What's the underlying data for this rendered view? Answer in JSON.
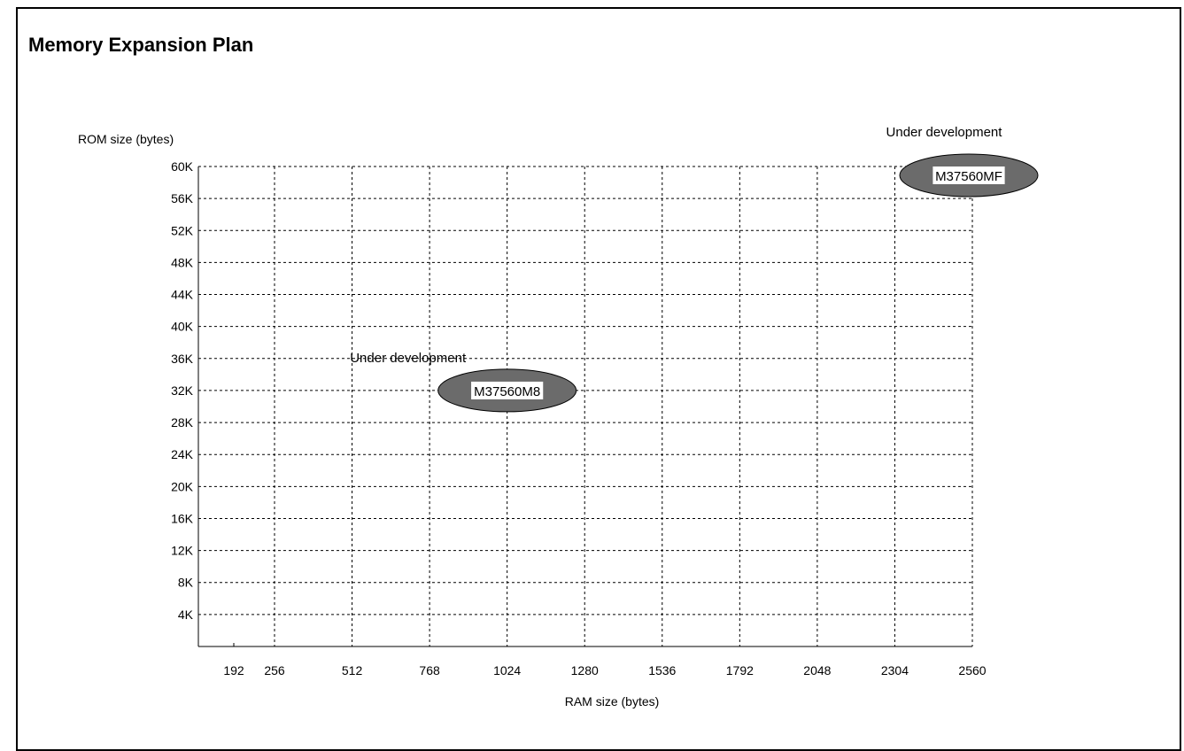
{
  "page": {
    "title": "Memory Expansion Plan"
  },
  "colors": {
    "ellipse_fill": "#6b6b6b",
    "label_box": "#ffffff",
    "grid": "#000000",
    "text": "#000000"
  },
  "chart_data": {
    "type": "scatter",
    "title": "Memory Expansion Plan",
    "xlabel": "RAM size (bytes)",
    "ylabel": "ROM size (bytes)",
    "x_ticks": [
      "192",
      "256",
      "512",
      "768",
      "1024",
      "1280",
      "1536",
      "1792",
      "2048",
      "2304",
      "2560"
    ],
    "y_ticks": [
      "4K",
      "8K",
      "12K",
      "16K",
      "20K",
      "24K",
      "28K",
      "32K",
      "36K",
      "40K",
      "44K",
      "48K",
      "52K",
      "56K",
      "60K"
    ],
    "grid": true,
    "points": [
      {
        "label": "M37560M8",
        "ram": 1024,
        "rom_k": 32,
        "note": "Under development"
      },
      {
        "label": "M37560MF",
        "ram": 2560,
        "rom_k": 60,
        "note": "Under development"
      }
    ]
  }
}
